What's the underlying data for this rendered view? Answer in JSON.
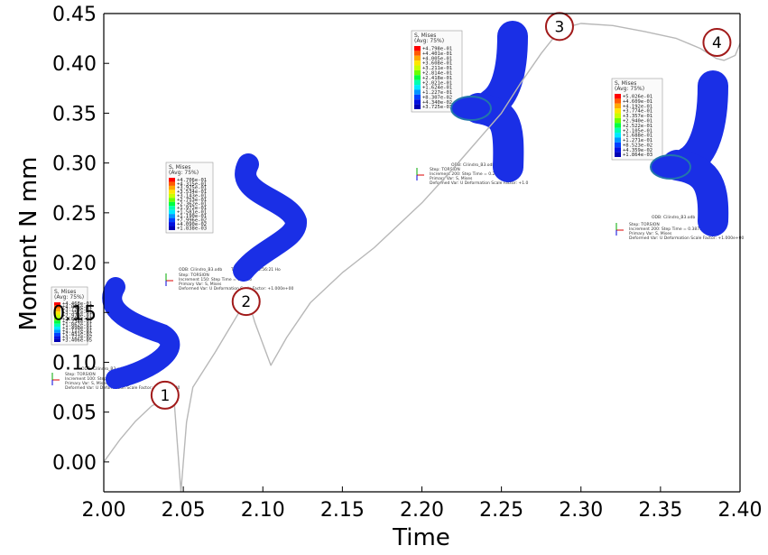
{
  "chart_data": {
    "type": "line",
    "xlabel": "Time",
    "ylabel": "Moment  N mm",
    "xlim": [
      2.0,
      2.4
    ],
    "ylim": [
      -0.03,
      0.45
    ],
    "x_ticks": [
      "2.00",
      "2.05",
      "2.10",
      "2.15",
      "2.20",
      "2.25",
      "2.30",
      "2.35",
      "2.40"
    ],
    "y_ticks": [
      "0.00",
      "0.05",
      "0.10",
      "0.15",
      "0.20",
      "0.25",
      "0.30",
      "0.35",
      "0.40",
      "0.45"
    ],
    "grid": false,
    "series": [
      {
        "color": "#b8b8b8",
        "x": [
          2.0,
          2.01,
          2.02,
          2.03,
          2.04,
          2.044,
          2.0485,
          2.052,
          2.056,
          2.07,
          2.085,
          2.0895,
          2.095,
          2.105,
          2.115,
          2.13,
          2.15,
          2.17,
          2.2,
          2.22,
          2.25,
          2.262,
          2.275,
          2.28,
          2.285,
          2.29,
          2.3,
          2.32,
          2.34,
          2.36,
          2.375,
          2.385,
          2.39,
          2.397,
          2.4
        ],
        "y": [
          0.0,
          0.022,
          0.041,
          0.056,
          0.065,
          0.066,
          -0.03,
          0.04,
          0.075,
          0.11,
          0.15,
          0.17,
          0.14,
          0.097,
          0.125,
          0.16,
          0.19,
          0.215,
          0.26,
          0.295,
          0.35,
          0.38,
          0.41,
          0.42,
          0.43,
          0.436,
          0.44,
          0.438,
          0.432,
          0.425,
          0.415,
          0.405,
          0.403,
          0.408,
          0.42
        ]
      }
    ],
    "annotations": [
      {
        "label": "1",
        "x": 2.0385,
        "y": 0.067
      },
      {
        "label": "2",
        "x": 2.0895,
        "y": 0.161
      },
      {
        "label": "3",
        "x": 2.2865,
        "y": 0.437
      },
      {
        "label": "4",
        "x": 2.3855,
        "y": 0.421
      }
    ]
  },
  "insets": [
    {
      "title": "S, Mises",
      "avg": "(Avg: 75%)",
      "values": [
        "+4.468e-01",
        "+4.095e-01",
        "+3.723e-01",
        "+3.351e-01",
        "+2.979e-01",
        "+2.607e-01",
        "+2.234e-01",
        "+1.862e-01",
        "+1.490e-01",
        "+1.117e-01",
        "+7.451e-02",
        "+3.727e-02",
        "+3.406e-05"
      ],
      "step": "Step: TORSION",
      "increment": "Increment   100: Step Time =    0.0385",
      "primary": "Primary Var: S, Mises",
      "deformed": "Deformed Var: U   Deformation Scale Factor: +1.000e+00",
      "odb": "ODB: Cilindro_B3.odb"
    },
    {
      "title": "S, Mises",
      "avg": "(Avg: 75%)",
      "values": [
        "+4.706e-01",
        "+4.315e-01",
        "+3.925e-01",
        "+3.534e-01",
        "+3.143e-01",
        "+2.753e-01",
        "+2.362e-01",
        "+1.972e-01",
        "+1.581e-01",
        "+1.190e-01",
        "+7.996e-02",
        "+4.090e-02",
        "+1.838e-03"
      ],
      "step": "Step: TORSION",
      "increment": "Increment   150: Step Time =    0.0895",
      "primary": "Primary Var: S, Mises",
      "deformed": "Deformed Var: U   Deformation Scale Factor: +1.000e+00",
      "odb": "ODB: Cilindro_B3.odb",
      "date": "Thu Mar 26 16:56:21 Ho"
    },
    {
      "title": "S, Mises",
      "avg": "(Avg: 75%)",
      "values": [
        "+4.798e-01",
        "+4.401e-01",
        "+4.005e-01",
        "+3.608e-01",
        "+3.211e-01",
        "+2.814e-01",
        "+2.418e-01",
        "+2.021e-01",
        "+1.624e-01",
        "+1.227e-01",
        "+8.307e-02",
        "+4.340e-02",
        "+3.725e-03"
      ],
      "step": "Step: TORSION",
      "increment": "Increment   200: Step Time =    0.2792",
      "primary": "Primary Var: S, Mises",
      "deformed": "Deformed Var: U   Deformation Scale Factor: +1.0",
      "odb": "ODB: Cilindro_B3.odb"
    },
    {
      "title": "S, Mises",
      "avg": "(Avg: 75%)",
      "values": [
        "+5.026e-01",
        "+4.609e-01",
        "+4.192e-01",
        "+3.774e-01",
        "+3.357e-01",
        "+2.940e-01",
        "+2.522e-01",
        "+2.105e-01",
        "+1.688e-01",
        "+1.271e-01",
        "+8.523e-02",
        "+4.359e-02",
        "+1.864e-03"
      ],
      "step": "Step: TORSION",
      "increment": "Increment   200: Step Time =    0.3875",
      "primary": "Primary Var: S, Mises",
      "deformed": "Deformed Var: U   Deformation Scale Factor: +1.000e+00",
      "odb": "ODB: Cilindro_B3.odb",
      "date": "Thu Ma"
    }
  ],
  "legend_colors": [
    "#ff0000",
    "#ff5a00",
    "#ffa800",
    "#ffe600",
    "#c8ff00",
    "#6aff00",
    "#00ff40",
    "#00ffb0",
    "#00e8ff",
    "#0096ff",
    "#0040ff",
    "#0010e0",
    "#0000b4"
  ],
  "tube_color": "#1a2fe6",
  "marker_color": "#a11a1a"
}
